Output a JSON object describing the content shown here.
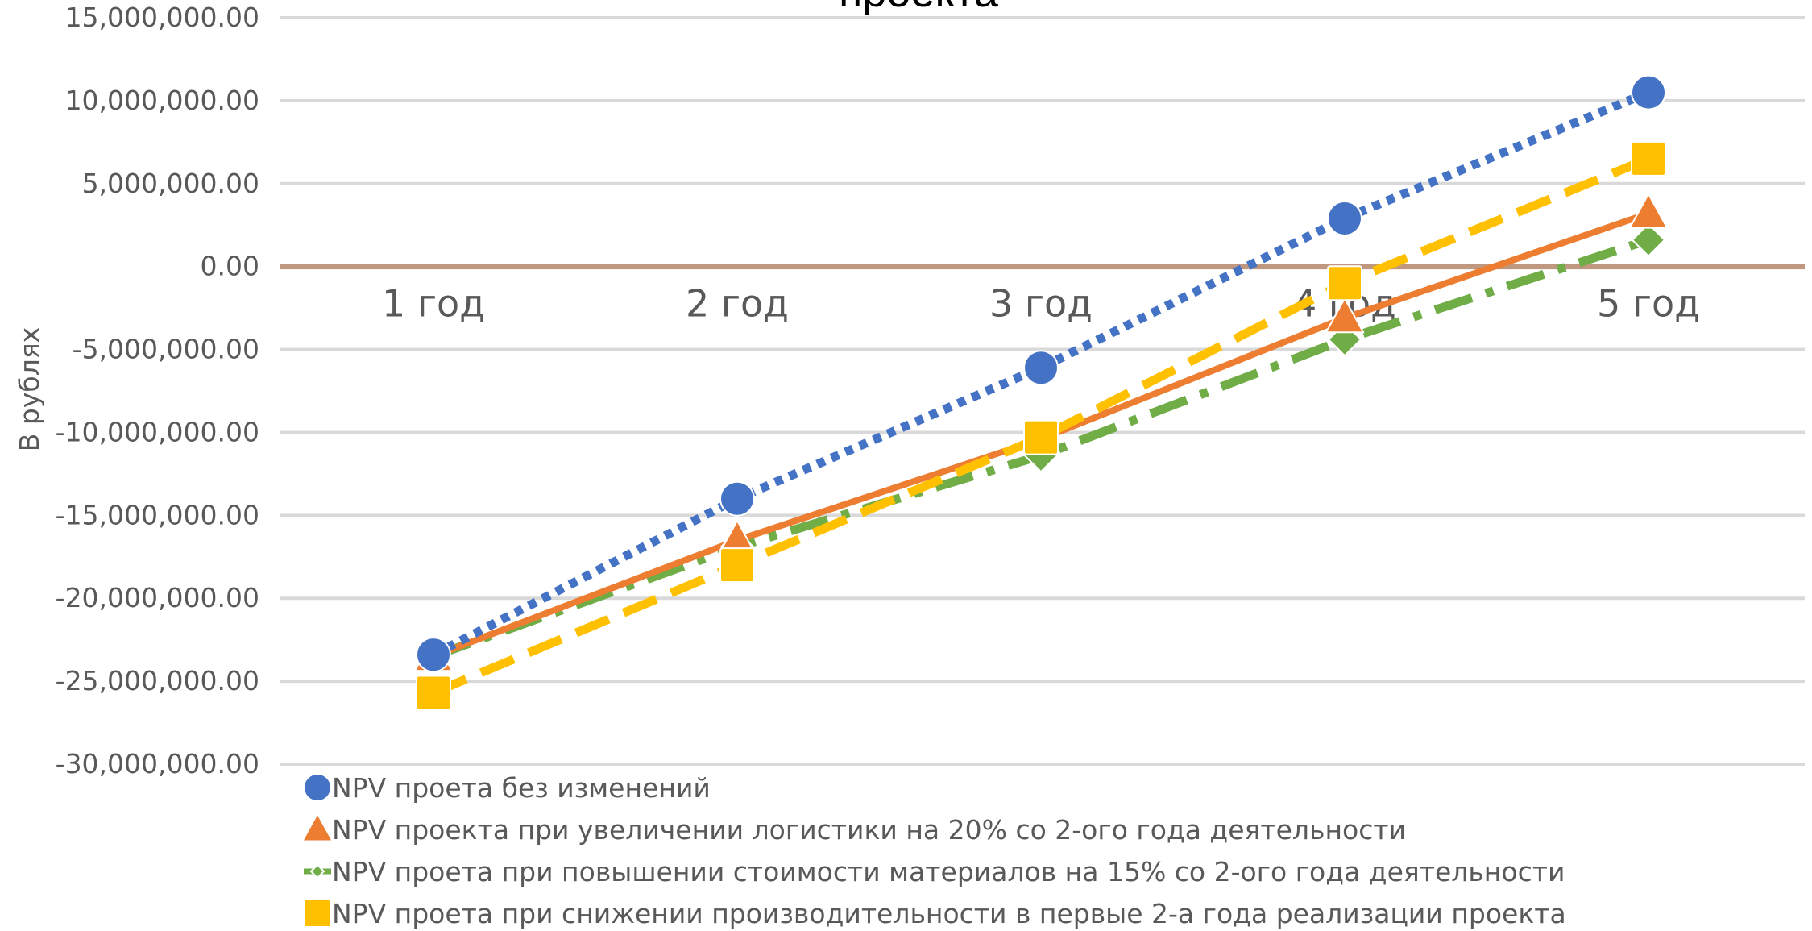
{
  "chart_data": {
    "type": "line",
    "title": "проекта",
    "ylabel": "В рублях",
    "xlabel": "",
    "categories": [
      "1 год",
      "2 год",
      "3 год",
      "4 год",
      "5 год"
    ],
    "ylim": [
      -30000000,
      15000000
    ],
    "yticks": [
      15000000,
      10000000,
      5000000,
      0,
      -5000000,
      -10000000,
      -15000000,
      -20000000,
      -25000000,
      -30000000
    ],
    "ytick_labels": [
      "15,000,000.00",
      "10,000,000.00",
      "5,000,000.00",
      "0.00",
      "-5,000,000.00",
      "-10,000,000.00",
      "-15,000,000.00",
      "-20,000,000.00",
      "-25,000,000.00",
      "-30,000,000.00"
    ],
    "grid": true,
    "legend_position": "bottom",
    "series": [
      {
        "name": "NPV проета без изменений",
        "values": [
          -23400000,
          -14000000,
          -6100000,
          2900000,
          10500000
        ],
        "color": "#4472C4",
        "marker": "circle",
        "dash": "dotted"
      },
      {
        "name": "NPV проекта при увеличении логистики на 20% со 2-ого года деятельности",
        "values": [
          -23500000,
          -16500000,
          -10400000,
          -3100000,
          3200000
        ],
        "color": "#ED7D31",
        "marker": "triangle",
        "dash": "solid"
      },
      {
        "name": "NPV проета при повышении стоимости материалов на 15% со 2-ого года деятельности",
        "values": [
          -23500000,
          -16900000,
          -11400000,
          -4400000,
          1600000
        ],
        "color": "#70AD47",
        "marker": "diamond",
        "dash": "dashdot"
      },
      {
        "name": "NPV проета при снижении производительности в первые 2-а года реализации проекта",
        "values": [
          -25700000,
          -18000000,
          -10300000,
          -1000000,
          6500000
        ],
        "color": "#FFC000",
        "marker": "square",
        "dash": "dashed"
      }
    ]
  }
}
